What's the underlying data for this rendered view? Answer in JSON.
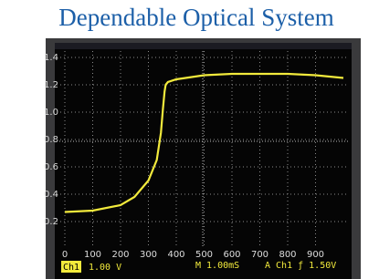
{
  "chart_data": {
    "type": "line",
    "title": "Dependable Optical System",
    "x": [
      0,
      100,
      200,
      250,
      300,
      330,
      345,
      352,
      358,
      362,
      370,
      400,
      500,
      600,
      700,
      800,
      900,
      1000
    ],
    "series": [
      {
        "name": "Ch1",
        "color": "#f2ea3c",
        "values": [
          0.27,
          0.28,
          0.32,
          0.38,
          0.5,
          0.65,
          0.85,
          1.02,
          1.15,
          1.2,
          1.22,
          1.24,
          1.27,
          1.28,
          1.28,
          1.28,
          1.27,
          1.25
        ]
      }
    ],
    "xlim": [
      0,
      1000
    ],
    "xticks": [
      0,
      100,
      200,
      300,
      400,
      500,
      600,
      700,
      800,
      900
    ],
    "ylim": [
      0.03,
      1.47
    ],
    "yticks": [
      0.2,
      0.4,
      0.6,
      0.8,
      {
        "value": 1,
        "label": "1.0"
      },
      1.2,
      1.4
    ],
    "grid": true,
    "scale": "1.00 V",
    "timebase": "M 1.00mS",
    "trigger": "A Ch1 ƒ 1.50V"
  }
}
